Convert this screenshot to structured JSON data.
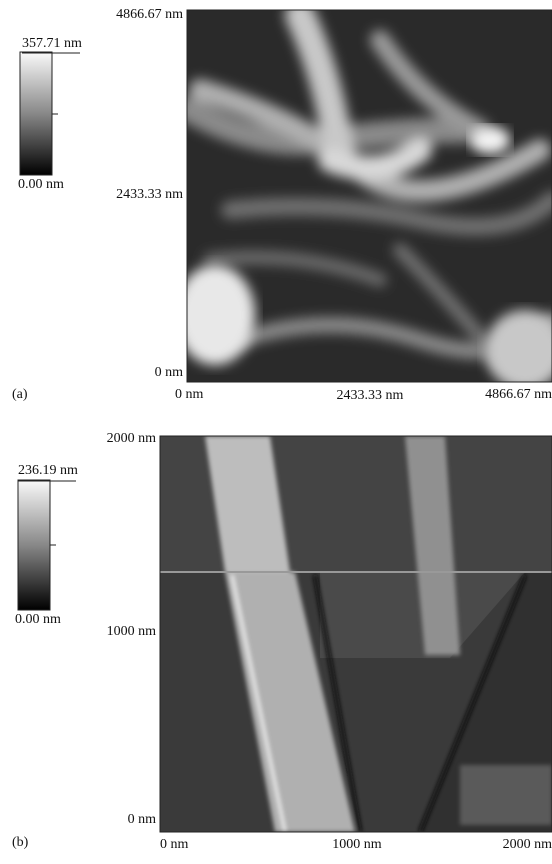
{
  "panels": [
    {
      "label": "(a)",
      "colorbar": {
        "max": "357.71 nm",
        "min": "0.00 nm"
      },
      "y_labels": [
        "4866.67 nm",
        "2433.33 nm",
        "0 nm"
      ],
      "x_labels": [
        "0 nm",
        "2433.33 nm",
        "4866.67 nm"
      ]
    },
    {
      "label": "(b)",
      "colorbar": {
        "max": "236.19 nm",
        "min": "0.00 nm"
      },
      "y_labels": [
        "2000 nm",
        "1000 nm",
        "0 nm"
      ],
      "x_labels": [
        "0 nm",
        "1000 nm",
        "2000 nm"
      ]
    }
  ]
}
